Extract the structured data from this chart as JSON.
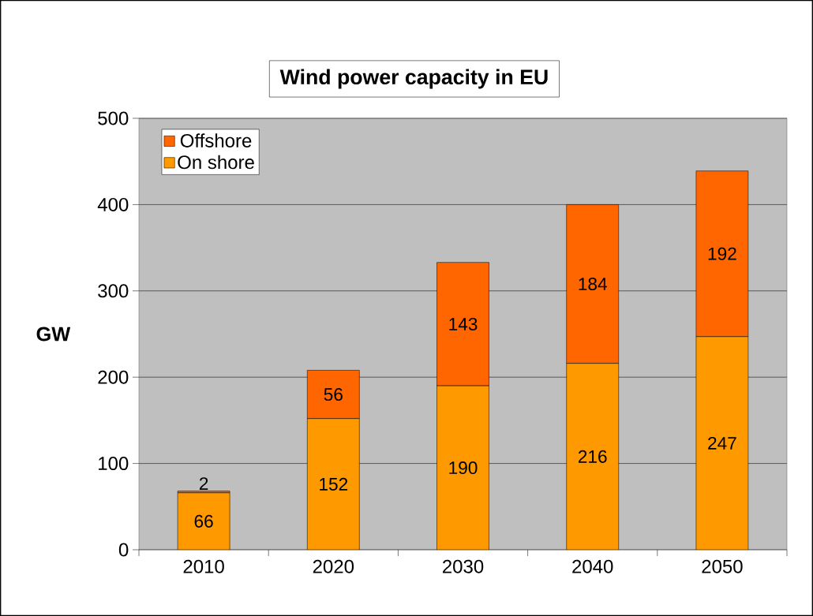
{
  "chart_data": {
    "type": "bar",
    "title": "Wind power capacity in EU",
    "ylabel": "GW",
    "categories": [
      "2010",
      "2020",
      "2030",
      "2040",
      "2050"
    ],
    "stacked": true,
    "series": [
      {
        "name": "On shore",
        "color": "#ff9900",
        "values": [
          66,
          152,
          190,
          216,
          247
        ]
      },
      {
        "name": "Offshore",
        "color": "#ff6600",
        "values": [
          2,
          56,
          143,
          184,
          192
        ]
      }
    ],
    "ylim": [
      0,
      500
    ],
    "yticks": [
      0,
      100,
      200,
      300,
      400,
      500
    ],
    "grid": "y",
    "legend": "top left",
    "data_labels": true
  }
}
